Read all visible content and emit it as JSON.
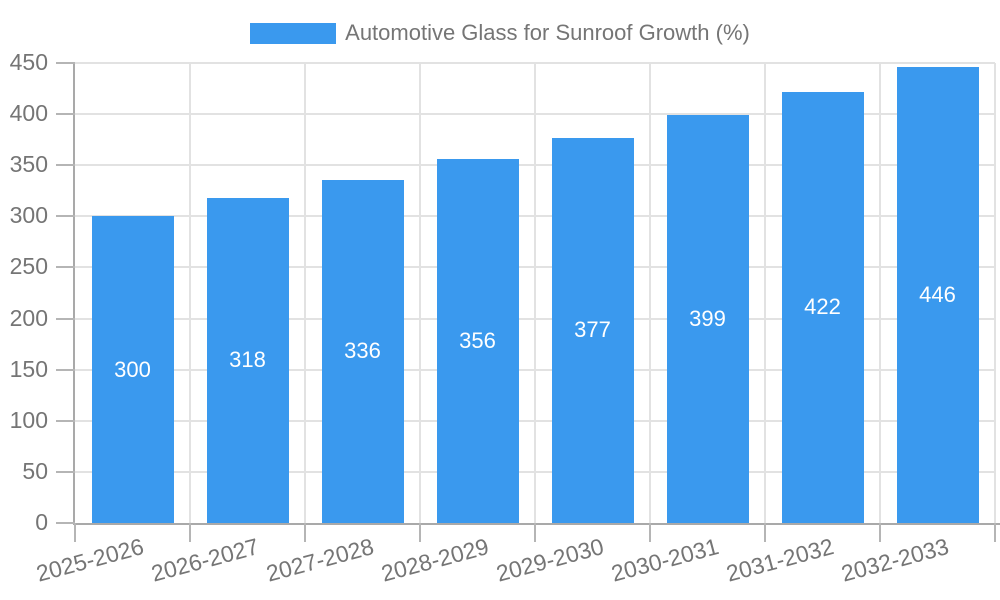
{
  "chart_data": {
    "type": "bar",
    "title": "Automotive Glass for Sunroof Growth (%)",
    "legend_position": "top",
    "categories": [
      "2025-2026",
      "2026-2027",
      "2027-2028",
      "2028-2029",
      "2029-2030",
      "2030-2031",
      "2031-2032",
      "2032-2033"
    ],
    "series": [
      {
        "name": "Automotive Glass for Sunroof Growth (%)",
        "values": [
          300,
          318,
          336,
          356,
          377,
          399,
          422,
          446
        ]
      }
    ],
    "value_labels": [
      300,
      318,
      336,
      356,
      377,
      399,
      422,
      446
    ],
    "xlabel": "",
    "ylabel": "",
    "ylim": [
      0,
      450
    ],
    "yticks": [
      0,
      50,
      100,
      150,
      200,
      250,
      300,
      350,
      400,
      450
    ],
    "grid": true,
    "x_tick_rotation_deg": -15,
    "colors": {
      "bar": "#3A99EE",
      "grid": "#E2E2E2",
      "axis": "#A9A9A9",
      "tick": "#B5B5B5",
      "text": "#757575",
      "value_label": "#FFFFFF",
      "background": "#FFFFFF"
    }
  }
}
